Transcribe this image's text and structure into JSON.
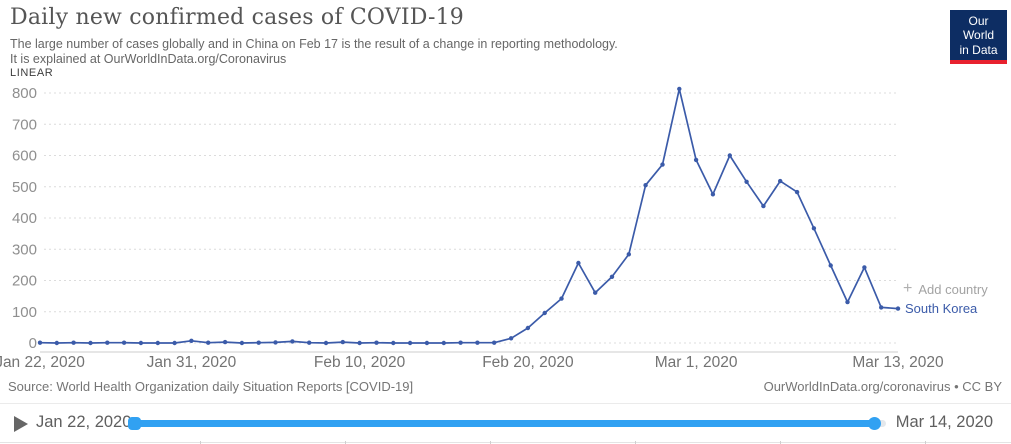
{
  "header": {
    "title": "Daily new confirmed cases of COVID-19",
    "subtitle_line1": "The large number of cases globally and in China on Feb 17 is the result of a change in reporting methodology.",
    "subtitle_line2": "It is explained at OurWorldInData.org/Coronavirus"
  },
  "logo": {
    "line1": "Our World",
    "line2": "in Data"
  },
  "scale_toggle": {
    "label": "LINEAR"
  },
  "legend": {
    "plus_icon": "+",
    "add_country_label": "Add country"
  },
  "chart_data": {
    "type": "line",
    "title": "Daily new confirmed cases of COVID-19",
    "xlabel": "",
    "ylabel": "",
    "ylim": [
      0,
      800
    ],
    "grid": "horizontal-dashed",
    "legend_position": "line-end-right",
    "yticks": [
      0,
      100,
      200,
      300,
      400,
      500,
      600,
      700,
      800
    ],
    "xticks": [
      {
        "label": "Jan 22, 2020",
        "day": 0
      },
      {
        "label": "Jan 31, 2020",
        "day": 9
      },
      {
        "label": "Feb 10, 2020",
        "day": 19
      },
      {
        "label": "Feb 20, 2020",
        "day": 29
      },
      {
        "label": "Mar 1, 2020",
        "day": 39
      },
      {
        "label": "Mar 13, 2020",
        "day": 51
      }
    ],
    "series": [
      {
        "name": "South Korea",
        "color": "#3b5ba9",
        "dates": [
          "2020-01-22",
          "2020-01-23",
          "2020-01-24",
          "2020-01-25",
          "2020-01-26",
          "2020-01-27",
          "2020-01-28",
          "2020-01-29",
          "2020-01-30",
          "2020-01-31",
          "2020-02-01",
          "2020-02-02",
          "2020-02-03",
          "2020-02-04",
          "2020-02-05",
          "2020-02-06",
          "2020-02-07",
          "2020-02-08",
          "2020-02-09",
          "2020-02-10",
          "2020-02-11",
          "2020-02-12",
          "2020-02-13",
          "2020-02-14",
          "2020-02-15",
          "2020-02-16",
          "2020-02-17",
          "2020-02-18",
          "2020-02-19",
          "2020-02-20",
          "2020-02-21",
          "2020-02-22",
          "2020-02-23",
          "2020-02-24",
          "2020-02-25",
          "2020-02-26",
          "2020-02-27",
          "2020-02-28",
          "2020-02-29",
          "2020-03-01",
          "2020-03-02",
          "2020-03-03",
          "2020-03-04",
          "2020-03-05",
          "2020-03-06",
          "2020-03-07",
          "2020-03-08",
          "2020-03-09",
          "2020-03-10",
          "2020-03-11",
          "2020-03-12",
          "2020-03-13"
        ],
        "values": [
          1,
          0,
          1,
          0,
          1,
          1,
          0,
          0,
          0,
          7,
          1,
          3,
          0,
          1,
          2,
          5,
          1,
          0,
          3,
          0,
          1,
          0,
          0,
          0,
          0,
          1,
          1,
          1,
          15,
          48,
          96,
          142,
          256,
          161,
          212,
          284,
          505,
          571,
          813,
          586,
          476,
          600,
          516,
          438,
          518,
          483,
          367,
          248,
          131,
          242,
          114,
          110
        ]
      }
    ]
  },
  "footer": {
    "source": "Source: World Health Organization daily Situation Reports [COVID-19]",
    "attribution": "OurWorldInData.org/coronavirus • CC BY"
  },
  "timeline": {
    "start_label": "Jan 22, 2020",
    "end_label": "Mar 14, 2020"
  },
  "colors": {
    "line": "#3b5ba9",
    "series_label": "#3b5ba9",
    "slider": "#31a1f2",
    "logo_bg": "#0d2d63",
    "logo_red": "#e8212e",
    "gridline": "#dcdcdc",
    "axis_text": "#8f8f8f"
  }
}
